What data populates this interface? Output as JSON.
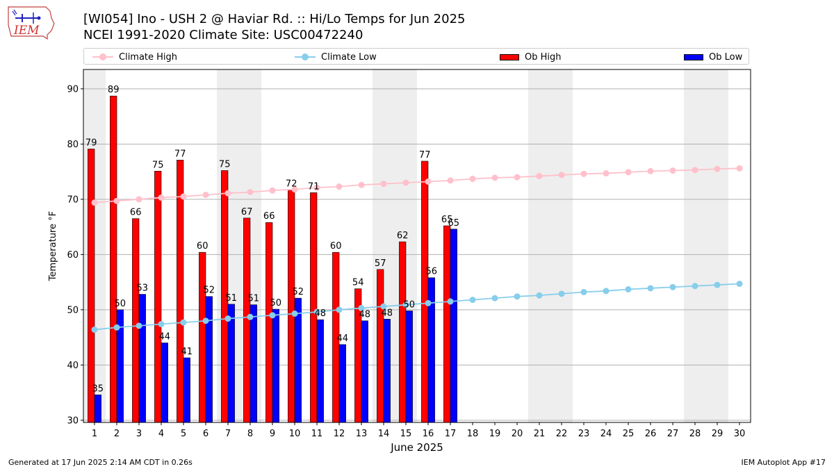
{
  "header": {
    "title_line1": "[WI054] Ino - USH 2 @ Haviar Rd. :: Hi/Lo Temps for Jun 2025",
    "title_line2": "NCEI 1991-2020 Climate Site: USC00472240",
    "logo_text": "IEM"
  },
  "footer": {
    "generated": "Generated at 17 Jun 2025 2:14 AM CDT in 0.26s",
    "app": "IEM Autoplot App #17"
  },
  "legend": {
    "climate_high": "Climate High",
    "climate_low": "Climate Low",
    "ob_high": "Ob High",
    "ob_low": "Ob Low"
  },
  "colors": {
    "climate_high": "#ffc0cb",
    "climate_low": "#87ceeb",
    "ob_high": "#ff0000",
    "ob_low": "#0000ff",
    "weekend_band": "#eeeeee",
    "grid": "#b0b0b0"
  },
  "chart_data": {
    "type": "bar",
    "xlabel": "June 2025",
    "ylabel": "Temperature °F",
    "xlim": [
      0.5,
      30.5
    ],
    "ylim": [
      29.6,
      93.5
    ],
    "yticks": [
      30,
      40,
      50,
      60,
      70,
      80,
      90
    ],
    "days": [
      1,
      2,
      3,
      4,
      5,
      6,
      7,
      8,
      9,
      10,
      11,
      12,
      13,
      14,
      15,
      16,
      17,
      18,
      19,
      20,
      21,
      22,
      23,
      24,
      25,
      26,
      27,
      28,
      29,
      30
    ],
    "weekend_bands": [
      [
        0.5,
        1.5
      ],
      [
        6.5,
        8.5
      ],
      [
        13.5,
        15.5
      ],
      [
        20.5,
        22.5
      ],
      [
        27.5,
        29.5
      ]
    ],
    "grid": true,
    "legend_position": "top",
    "series": [
      {
        "name": "Ob High",
        "kind": "bar",
        "values": [
          79,
          89,
          66,
          75,
          77,
          60,
          75,
          67,
          66,
          72,
          71,
          60,
          54,
          57,
          62,
          77,
          65
        ],
        "plot_values": [
          79.1,
          88.7,
          66.5,
          75.1,
          77.1,
          60.4,
          75.2,
          66.6,
          65.8,
          71.7,
          71.2,
          60.4,
          53.8,
          57.3,
          62.3,
          76.9,
          65.2
        ]
      },
      {
        "name": "Ob Low",
        "kind": "bar",
        "values": [
          35,
          50,
          53,
          44,
          41,
          52,
          51,
          51,
          50,
          52,
          48,
          44,
          48,
          48,
          50,
          56,
          65
        ],
        "plot_values": [
          34.6,
          50.0,
          52.8,
          44.0,
          41.3,
          52.4,
          51.0,
          50.9,
          50.1,
          52.1,
          48.2,
          43.7,
          48.0,
          48.3,
          49.8,
          55.8,
          64.6
        ]
      },
      {
        "name": "Climate High",
        "kind": "line",
        "values": [
          69.4,
          69.7,
          70.0,
          70.3,
          70.5,
          70.8,
          71.1,
          71.3,
          71.6,
          71.8,
          72.1,
          72.3,
          72.6,
          72.8,
          73.0,
          73.2,
          73.4,
          73.7,
          73.9,
          74.0,
          74.2,
          74.4,
          74.6,
          74.7,
          74.9,
          75.1,
          75.2,
          75.3,
          75.5,
          75.6
        ]
      },
      {
        "name": "Climate Low",
        "kind": "line",
        "values": [
          46.4,
          46.8,
          47.1,
          47.4,
          47.7,
          48.0,
          48.4,
          48.7,
          49.0,
          49.3,
          49.6,
          50.0,
          50.3,
          50.6,
          50.9,
          51.2,
          51.5,
          51.8,
          52.1,
          52.4,
          52.6,
          52.9,
          53.2,
          53.4,
          53.7,
          53.9,
          54.1,
          54.3,
          54.5,
          54.7
        ]
      }
    ]
  }
}
